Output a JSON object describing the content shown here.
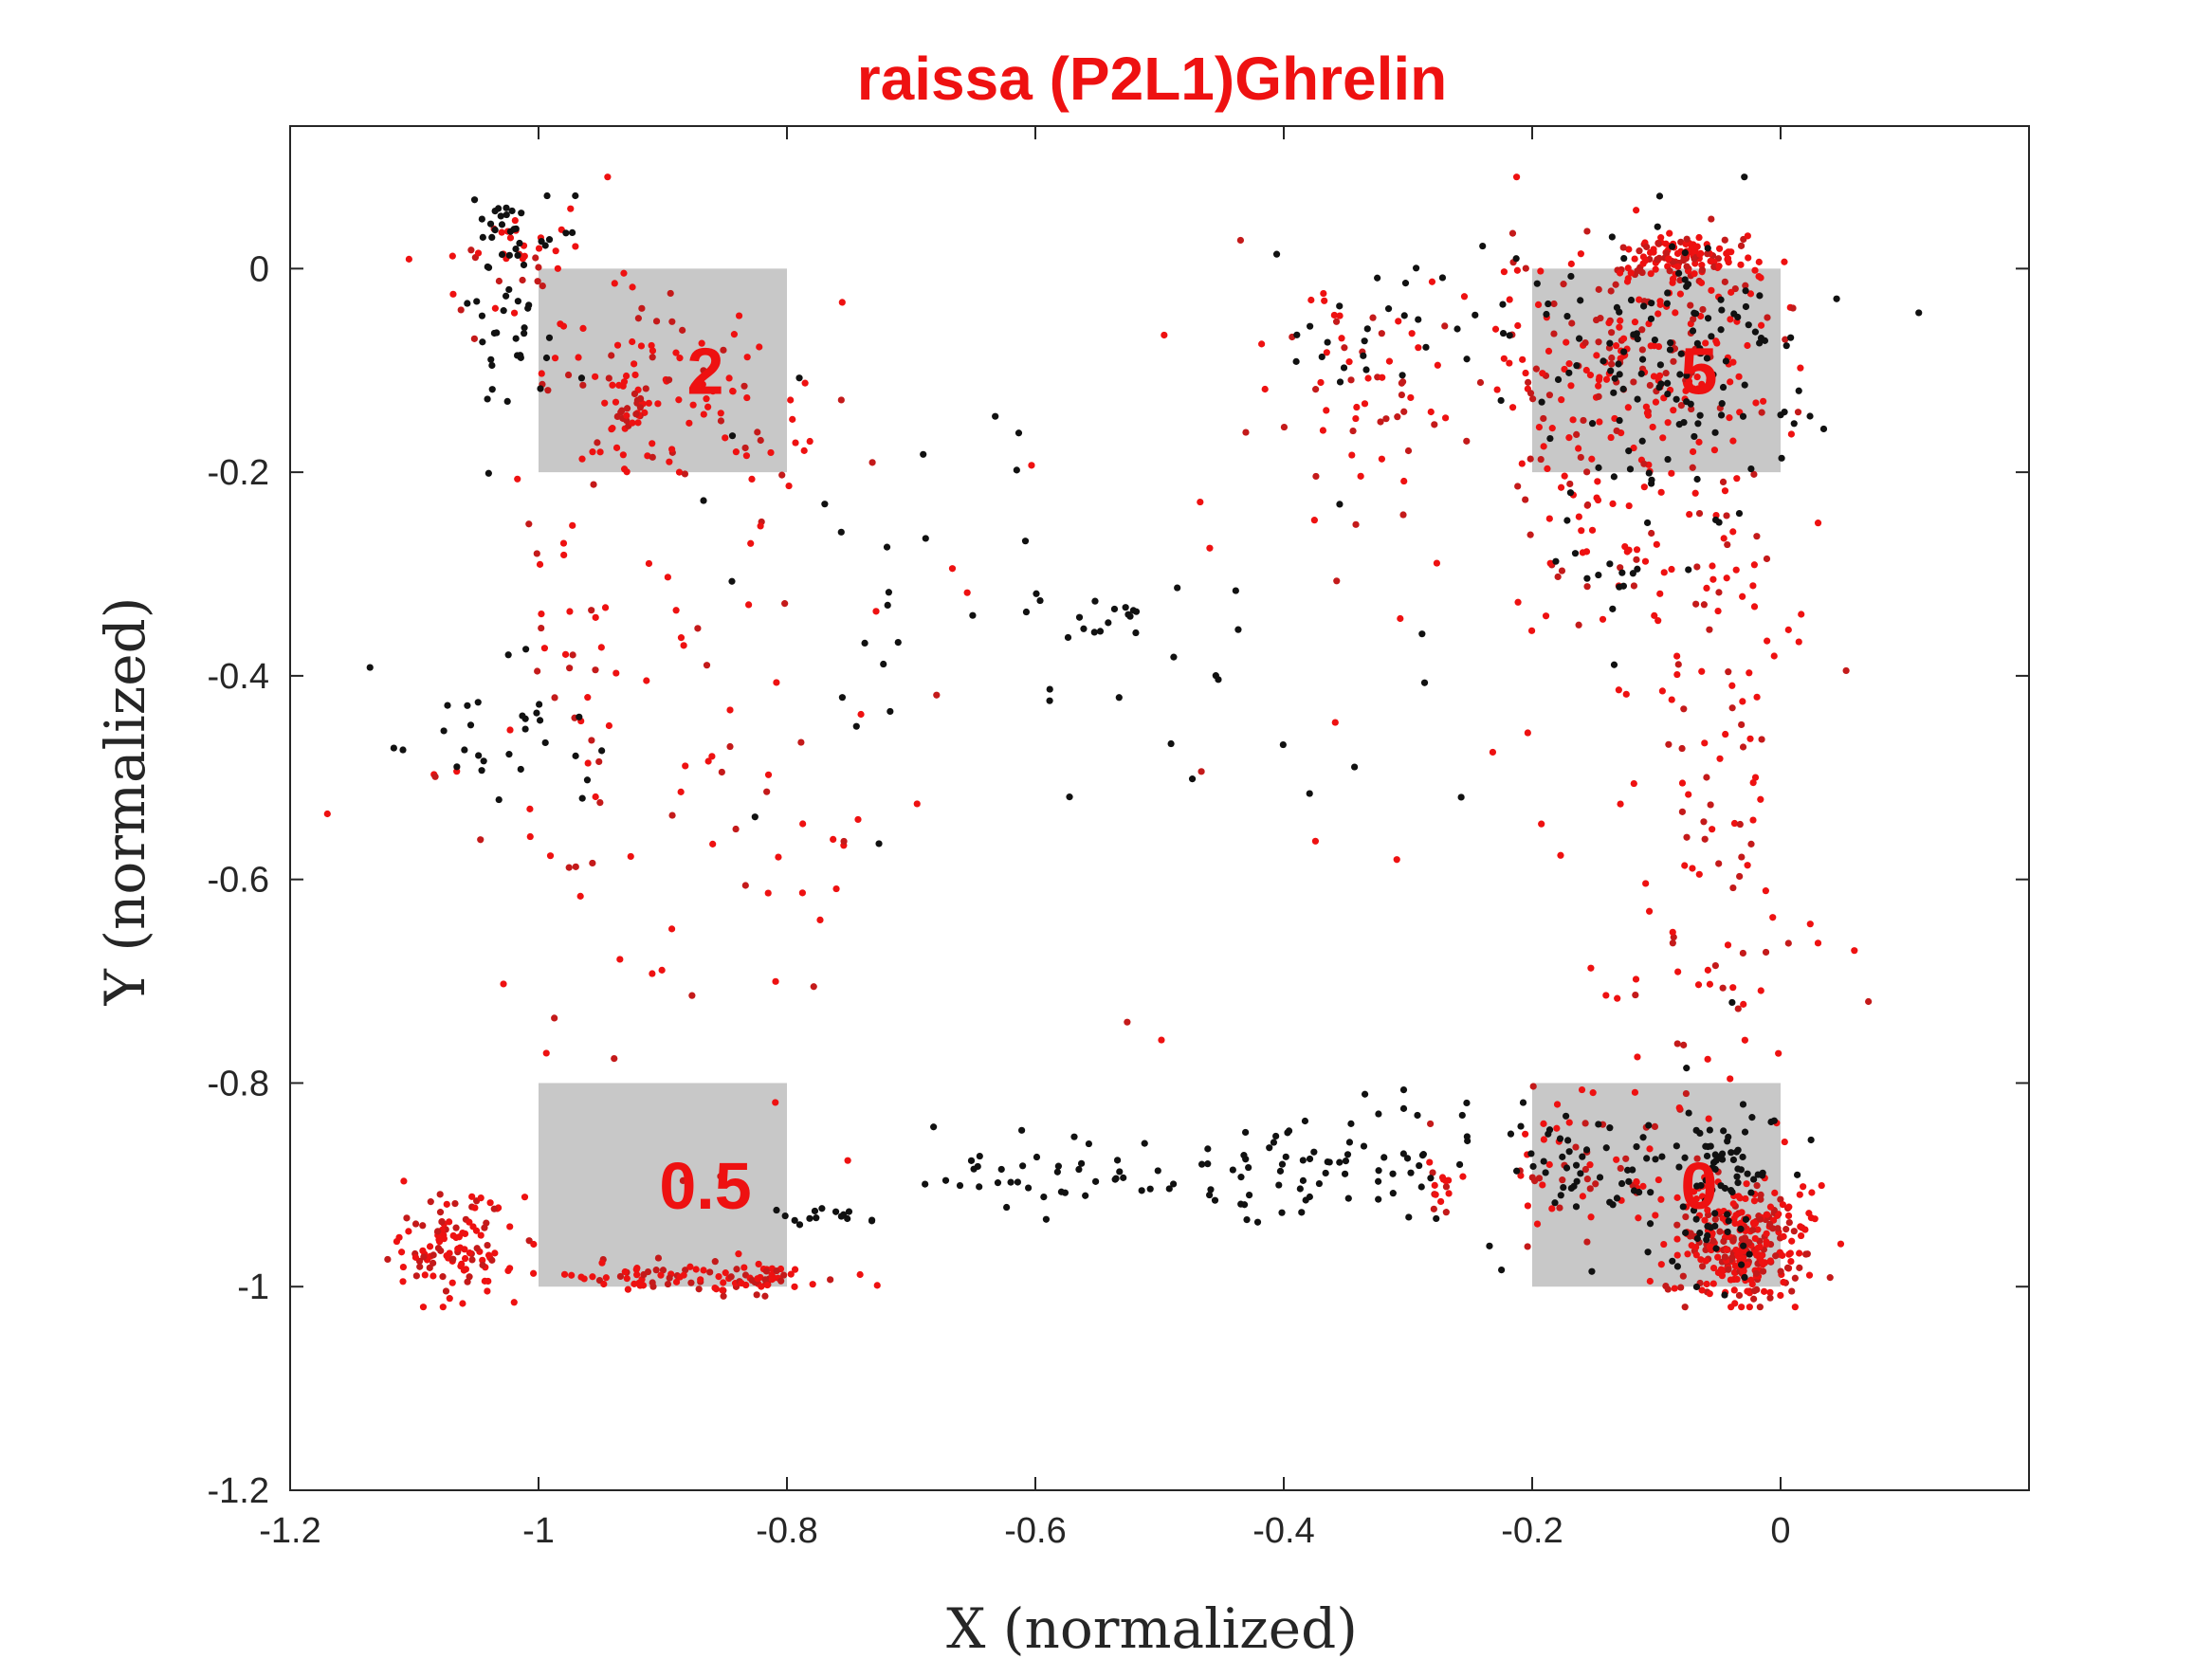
{
  "chart_data": {
    "type": "scatter",
    "title": "raissa (P2L1)Ghrelin",
    "xlabel": "X (normalized)",
    "ylabel": "Y (normalized)",
    "xlim": [
      -1.2,
      0.2
    ],
    "ylim": [
      -1.2,
      0.14
    ],
    "xticks": [
      "-1.2",
      "-1",
      "-0.8",
      "-0.6",
      "-0.4",
      "-0.2",
      "0"
    ],
    "yticks": [
      "0",
      "-0.2",
      "-0.4",
      "-0.6",
      "-0.8",
      "-1",
      "-1.2"
    ],
    "grid": false,
    "colors": {
      "title": "#ee1111",
      "red_points": "#ee1111",
      "dark_red_points": "#c41a1a",
      "black_points": "#111111",
      "zone_fill": "#c8c8c8",
      "zone_text": "#ee1111"
    },
    "zones": [
      {
        "label": "2",
        "x": [
          -1.0,
          -0.8
        ],
        "y": [
          -0.2,
          0.0
        ]
      },
      {
        "label": "5",
        "x": [
          -0.2,
          0.0
        ],
        "y": [
          -0.2,
          0.0
        ]
      },
      {
        "label": "0.5",
        "x": [
          -1.0,
          -0.8
        ],
        "y": [
          -1.0,
          -0.8
        ]
      },
      {
        "label": "0",
        "x": [
          -0.2,
          0.0
        ],
        "y": [
          -1.0,
          -0.8
        ]
      }
    ],
    "series": [
      {
        "color": "red",
        "clusters": [
          {
            "cx": -1.07,
            "cy": -0.96,
            "sx": 0.025,
            "sy": 0.025,
            "n": 110
          },
          {
            "cx": -0.9,
            "cy": -0.99,
            "sx": 0.06,
            "sy": 0.008,
            "n": 70
          },
          {
            "cx": -0.82,
            "cy": -0.99,
            "sx": 0.015,
            "sy": 0.008,
            "n": 40
          },
          {
            "cx": -1.04,
            "cy": 0.01,
            "sx": 0.03,
            "sy": 0.03,
            "n": 35
          },
          {
            "cx": -0.92,
            "cy": -0.11,
            "sx": 0.05,
            "sy": 0.05,
            "n": 60
          },
          {
            "cx": -0.93,
            "cy": -0.14,
            "sx": 0.012,
            "sy": 0.012,
            "n": 25
          },
          {
            "cx": -0.85,
            "cy": -0.16,
            "sx": 0.05,
            "sy": 0.04,
            "n": 35
          },
          {
            "cx": -0.96,
            "cy": -0.4,
            "sx": 0.06,
            "sy": 0.16,
            "n": 70
          },
          {
            "cx": -0.82,
            "cy": -0.5,
            "sx": 0.06,
            "sy": 0.18,
            "n": 35
          },
          {
            "cx": -0.08,
            "cy": 0.01,
            "sx": 0.03,
            "sy": 0.012,
            "n": 130
          },
          {
            "cx": -0.12,
            "cy": -0.1,
            "sx": 0.06,
            "sy": 0.06,
            "n": 220
          },
          {
            "cx": -0.33,
            "cy": -0.12,
            "sx": 0.05,
            "sy": 0.06,
            "n": 60
          },
          {
            "cx": -0.14,
            "cy": -0.28,
            "sx": 0.05,
            "sy": 0.06,
            "n": 50
          },
          {
            "cx": -0.03,
            "cy": -0.38,
            "sx": 0.04,
            "sy": 0.12,
            "n": 60
          },
          {
            "cx": -0.03,
            "cy": -0.96,
            "sx": 0.025,
            "sy": 0.03,
            "n": 300
          },
          {
            "cx": -0.14,
            "cy": -0.88,
            "sx": 0.04,
            "sy": 0.04,
            "n": 60
          },
          {
            "cx": -0.06,
            "cy": -0.65,
            "sx": 0.05,
            "sy": 0.1,
            "n": 60
          },
          {
            "cx": -0.27,
            "cy": -0.91,
            "sx": 0.006,
            "sy": 0.015,
            "n": 15
          },
          {
            "cx": -0.55,
            "cy": -0.5,
            "sx": 0.3,
            "sy": 0.3,
            "n": 25
          }
        ]
      },
      {
        "color": "black",
        "clusters": [
          {
            "cx": -1.02,
            "cy": -0.05,
            "sx": 0.02,
            "sy": 0.07,
            "n": 40
          },
          {
            "cx": -1.02,
            "cy": 0.04,
            "sx": 0.03,
            "sy": 0.015,
            "n": 20
          },
          {
            "cx": -1.04,
            "cy": -0.45,
            "sx": 0.05,
            "sy": 0.05,
            "n": 30
          },
          {
            "cx": -0.72,
            "cy": -0.3,
            "sx": 0.07,
            "sy": 0.1,
            "n": 25
          },
          {
            "cx": -0.55,
            "cy": -0.34,
            "sx": 0.03,
            "sy": 0.008,
            "n": 15
          },
          {
            "cx": -0.3,
            "cy": -0.05,
            "sx": 0.06,
            "sy": 0.05,
            "n": 35
          },
          {
            "cx": -0.08,
            "cy": -0.1,
            "sx": 0.05,
            "sy": 0.07,
            "n": 120
          },
          {
            "cx": -0.13,
            "cy": -0.3,
            "sx": 0.02,
            "sy": 0.03,
            "n": 15
          },
          {
            "cx": -0.05,
            "cy": -0.9,
            "sx": 0.03,
            "sy": 0.05,
            "n": 90
          },
          {
            "cx": -0.15,
            "cy": -0.88,
            "sx": 0.03,
            "sy": 0.02,
            "n": 40
          },
          {
            "cx": -0.6,
            "cy": -0.89,
            "sx": 0.06,
            "sy": 0.02,
            "n": 40
          },
          {
            "cx": -0.4,
            "cy": -0.89,
            "sx": 0.05,
            "sy": 0.03,
            "n": 50
          },
          {
            "cx": -0.28,
            "cy": -0.86,
            "sx": 0.05,
            "sy": 0.04,
            "n": 30
          },
          {
            "cx": -0.76,
            "cy": -0.93,
            "sx": 0.02,
            "sy": 0.005,
            "n": 15
          },
          {
            "cx": -0.5,
            "cy": -0.4,
            "sx": 0.1,
            "sy": 0.1,
            "n": 20
          }
        ]
      }
    ]
  }
}
